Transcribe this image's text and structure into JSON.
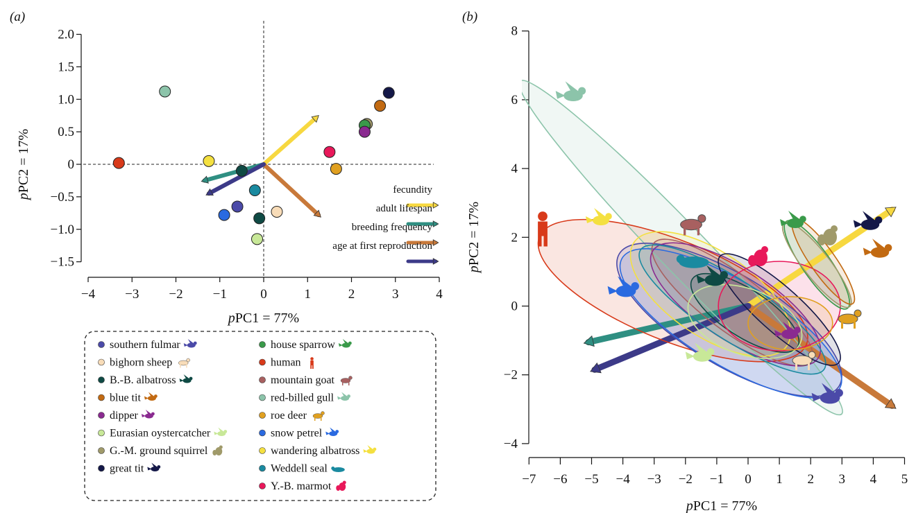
{
  "panel_a": {
    "label": "(a)",
    "xlabel_prefix": "p",
    "xlabel_rest": "PC1 = 77%",
    "ylabel_prefix": "p",
    "ylabel_rest": "PC2 = 17%"
  },
  "panel_b": {
    "label": "(b)",
    "xlabel_prefix": "p",
    "xlabel_rest": "PC1 = 77%",
    "ylabel_prefix": "p",
    "ylabel_rest": "PC2 = 17%"
  },
  "arrow_legend": [
    {
      "label": "fecundity",
      "color": "#f7d840"
    },
    {
      "label": "adult lifespan",
      "color": "#2f8f82"
    },
    {
      "label": "breeding frequency",
      "color": "#c8793a"
    },
    {
      "label": "age at first reproduction",
      "color": "#3c3a88"
    }
  ],
  "species_legend": [
    {
      "name": "southern fulmar",
      "color": "#4b4aa8",
      "icon": "fulmar-icon"
    },
    {
      "name": "bighorn sheep",
      "color": "#f8dcb8",
      "icon": "sheep-icon"
    },
    {
      "name": "B.-B. albatross",
      "color": "#0f4a44",
      "icon": "albatross-icon"
    },
    {
      "name": "blue tit",
      "color": "#c26a12",
      "icon": "bird-icon"
    },
    {
      "name": "dipper",
      "color": "#8a2a90",
      "icon": "bird-icon"
    },
    {
      "name": "Eurasian oystercatcher",
      "color": "#c8e898",
      "icon": "bird-icon"
    },
    {
      "name": "G.-M. ground squirrel",
      "color": "#a09a6a",
      "icon": "squirrel-icon"
    },
    {
      "name": "great tit",
      "color": "#141848",
      "icon": "bird-icon"
    },
    {
      "name": "house sparrow",
      "color": "#3a9a4a",
      "icon": "bird-icon"
    },
    {
      "name": "human",
      "color": "#d83a1a",
      "icon": "human-icon"
    },
    {
      "name": "mountain goat",
      "color": "#a86060",
      "icon": "goat-icon"
    },
    {
      "name": "red-billed gull",
      "color": "#8cc4aa",
      "icon": "gull-icon"
    },
    {
      "name": "roe deer",
      "color": "#e0a020",
      "icon": "deer-icon"
    },
    {
      "name": "snow petrel",
      "color": "#2a6ae0",
      "icon": "petrel-icon"
    },
    {
      "name": "wandering albatross",
      "color": "#f4e040",
      "icon": "albatross-icon"
    },
    {
      "name": "Weddell seal",
      "color": "#1a8aa0",
      "icon": "seal-icon"
    },
    {
      "name": "Y.-B. marmot",
      "color": "#e8185a",
      "icon": "marmot-icon"
    }
  ],
  "chart_data": [
    {
      "type": "scatter",
      "panel": "a",
      "xlabel": "pPC1 = 77%",
      "ylabel": "pPC2 = 17%",
      "xlim": [
        -4,
        4
      ],
      "ylim": [
        -1.5,
        2.0
      ],
      "xticks": [
        -4,
        -3,
        -2,
        -1,
        0,
        1,
        2,
        3,
        4
      ],
      "yticks": [
        -1.5,
        -1.0,
        -0.5,
        0,
        0.5,
        1.0,
        1.5,
        2.0
      ],
      "ytick_labels": [
        "−1.5",
        "−1.0",
        "−0.5",
        "0",
        "0.5",
        "1.0",
        "1.5",
        "2.0"
      ],
      "xtick_labels": [
        "−4",
        "−3",
        "−2",
        "−1",
        "0",
        "1",
        "2",
        "3",
        "4"
      ],
      "reference_lines": {
        "x": 0,
        "y": 0,
        "style": "dashed"
      },
      "points": [
        {
          "species": "red-billed gull",
          "x": -2.25,
          "y": 1.12
        },
        {
          "species": "human",
          "x": -3.3,
          "y": 0.02
        },
        {
          "species": "wandering albatross",
          "x": -1.25,
          "y": 0.05
        },
        {
          "species": "B.-B. albatross",
          "x": -0.5,
          "y": -0.1
        },
        {
          "species": "Weddell seal",
          "x": -0.2,
          "y": -0.4
        },
        {
          "species": "southern fulmar",
          "x": -0.6,
          "y": -0.65
        },
        {
          "species": "snow petrel",
          "x": -0.9,
          "y": -0.78
        },
        {
          "species": "B.-B. albatross",
          "x": -0.1,
          "y": -0.83
        },
        {
          "species": "Eurasian oystercatcher",
          "x": -0.15,
          "y": -1.15
        },
        {
          "species": "bighorn sheep",
          "x": 0.3,
          "y": -0.73
        },
        {
          "species": "Y.-B. marmot",
          "x": 1.5,
          "y": 0.19
        },
        {
          "species": "roe deer",
          "x": 1.65,
          "y": -0.07
        },
        {
          "species": "G.-M. ground squirrel",
          "x": 2.35,
          "y": 0.62
        },
        {
          "species": "house sparrow",
          "x": 2.3,
          "y": 0.6
        },
        {
          "species": "dipper",
          "x": 2.3,
          "y": 0.5
        },
        {
          "species": "blue tit",
          "x": 2.65,
          "y": 0.9
        },
        {
          "species": "great tit",
          "x": 2.85,
          "y": 1.1
        }
      ],
      "loadings": [
        {
          "trait": "fecundity",
          "x": 1.2,
          "y": 0.72
        },
        {
          "trait": "adult lifespan",
          "x": -1.35,
          "y": -0.25
        },
        {
          "trait": "breeding frequency",
          "x": 1.25,
          "y": -0.78
        },
        {
          "trait": "age at first reproduction",
          "x": -1.25,
          "y": -0.45
        }
      ]
    },
    {
      "type": "scatter",
      "panel": "b",
      "xlabel": "pPC1 = 77%",
      "ylabel": "pPC2 = 17%",
      "xlim": [
        -7,
        5
      ],
      "ylim": [
        -4,
        8
      ],
      "xticks": [
        -7,
        -6,
        -5,
        -4,
        -3,
        -2,
        -1,
        0,
        1,
        2,
        3,
        4,
        5
      ],
      "xtick_labels": [
        "−7",
        "−6",
        "−5",
        "−4",
        "−3",
        "−2",
        "−1",
        "0",
        "1",
        "2",
        "3",
        "4",
        "5"
      ],
      "yticks": [
        -4,
        -2,
        0,
        2,
        4,
        6,
        8
      ],
      "ytick_labels": [
        "−4",
        "−2",
        "0",
        "2",
        "4",
        "6",
        "8"
      ],
      "loadings": [
        {
          "trait": "fecundity",
          "x": 4.6,
          "y": 2.8
        },
        {
          "trait": "adult lifespan",
          "x": -5.1,
          "y": -1.05
        },
        {
          "trait": "breeding frequency",
          "x": 4.6,
          "y": -2.9
        },
        {
          "trait": "age at first reproduction",
          "x": -4.9,
          "y": -1.85
        }
      ],
      "ellipses": [
        {
          "species": "red-billed gull",
          "cx": -2.15,
          "cy": 1.7,
          "rx": 7.4,
          "ry": 0.75,
          "angle_deg": -46
        },
        {
          "species": "human",
          "cx": -2.4,
          "cy": 0.45,
          "rx": 4.6,
          "ry": 1.6,
          "angle_deg": -22
        },
        {
          "species": "southern fulmar",
          "cx": -0.6,
          "cy": -0.4,
          "rx": 4.1,
          "ry": 1.45,
          "angle_deg": -31
        },
        {
          "species": "snow petrel",
          "cx": -0.55,
          "cy": -0.5,
          "rx": 4.05,
          "ry": 1.35,
          "angle_deg": -31
        },
        {
          "species": "mountain goat",
          "cx": -0.5,
          "cy": 0.1,
          "rx": 3.15,
          "ry": 0.9,
          "angle_deg": -37
        },
        {
          "species": "wandering albatross",
          "cx": -1.2,
          "cy": 0.35,
          "rx": 2.95,
          "ry": 1.35,
          "angle_deg": -34
        },
        {
          "species": "dipper",
          "cx": -0.4,
          "cy": 0.05,
          "rx": 3.15,
          "ry": 1.15,
          "angle_deg": -33
        },
        {
          "species": "Weddell seal",
          "cx": -0.5,
          "cy": -0.1,
          "rx": 3.5,
          "ry": 0.95,
          "angle_deg": -33
        },
        {
          "species": "B.-B. albatross",
          "cx": -0.1,
          "cy": -0.2,
          "rx": 2.0,
          "ry": 0.75,
          "angle_deg": -33
        },
        {
          "species": "Eurasian oystercatcher",
          "cx": -0.1,
          "cy": -0.45,
          "rx": 1.9,
          "ry": 1.05,
          "angle_deg": -20
        },
        {
          "species": "great tit",
          "cx": 1.0,
          "cy": -0.1,
          "rx": 2.55,
          "ry": 0.7,
          "angle_deg": -42
        },
        {
          "species": "Y.-B. marmot",
          "cx": 1.0,
          "cy": 0.0,
          "rx": 1.95,
          "ry": 1.43,
          "angle_deg": 0
        },
        {
          "species": "roe deer",
          "cx": 1.35,
          "cy": -0.5,
          "rx": 1.35,
          "ry": 0.85,
          "angle_deg": 0
        },
        {
          "species": "house sparrow",
          "cx": 2.2,
          "cy": 1.2,
          "rx": 1.7,
          "ry": 0.45,
          "angle_deg": -55
        },
        {
          "species": "G.-M. ground squirrel",
          "cx": 2.2,
          "cy": 1.2,
          "rx": 1.7,
          "ry": 0.42,
          "angle_deg": -52
        },
        {
          "species": "blue tit",
          "cx": 2.4,
          "cy": 1.3,
          "rx": 1.65,
          "ry": 0.4,
          "angle_deg": -55
        }
      ]
    }
  ]
}
